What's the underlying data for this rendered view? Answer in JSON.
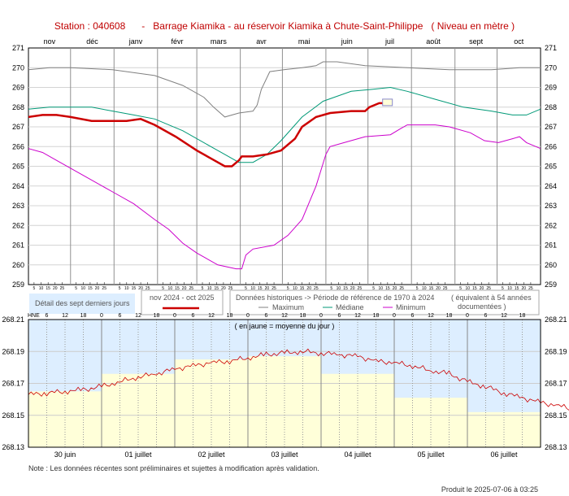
{
  "title": "Station : 040608      -   Barrage Kiamika - au réservoir Kiamika à Chute-Saint-Philippe   ( Niveau en mètre )",
  "legend": {
    "detail_box": "Détail des sept derniers jours",
    "period": "nov 2024 - oct 2025",
    "historic": "Données historiques -> Période de référence  de 1970 à 2024",
    "years": "( équivalent à 54 années",
    "years2": "documentées )",
    "max": "Maximum",
    "median": "Médiane",
    "min": "Minimum"
  },
  "note": "Note : Les données récentes sont préliminaires et sujettes à modification après validation.",
  "produced": "Produit le 2025-07-06 à 03:25",
  "colors": {
    "current": "#cc0000",
    "max": "#808080",
    "median": "#009977",
    "min": "#cc00cc",
    "detail_bg": "#ddeeff",
    "detail_fill": "#ffffd9"
  },
  "chart_data": [
    {
      "type": "line",
      "months": [
        "nov",
        "déc",
        "janv",
        "févr",
        "mars",
        "avr",
        "mai",
        "juin",
        "juil",
        "août",
        "sept",
        "oct"
      ],
      "day_ticks": [
        "5",
        "10",
        "15",
        "20",
        "25"
      ],
      "ylim": [
        259,
        271
      ],
      "yticks": [
        259,
        260,
        261,
        262,
        263,
        264,
        265,
        266,
        267,
        268,
        269,
        270,
        271
      ],
      "grid": true,
      "series": [
        {
          "name": "Maximum",
          "points": [
            [
              0,
              269.9
            ],
            [
              15,
              270.0
            ],
            [
              30,
              270.0
            ],
            [
              60,
              269.9
            ],
            [
              90,
              269.6
            ],
            [
              110,
              269.1
            ],
            [
              125,
              268.5
            ],
            [
              132,
              268.0
            ],
            [
              140,
              267.5
            ],
            [
              150,
              267.7
            ],
            [
              160,
              267.8
            ],
            [
              163,
              268.1
            ],
            [
              166,
              268.9
            ],
            [
              172,
              269.8
            ],
            [
              182,
              269.9
            ],
            [
              195,
              270.0
            ],
            [
              205,
              270.1
            ],
            [
              210,
              270.3
            ],
            [
              220,
              270.3
            ],
            [
              240,
              270.1
            ],
            [
              270,
              270.0
            ],
            [
              300,
              269.9
            ],
            [
              330,
              269.9
            ],
            [
              350,
              270.0
            ],
            [
              365,
              270.0
            ]
          ]
        },
        {
          "name": "Médiane",
          "points": [
            [
              0,
              267.9
            ],
            [
              15,
              268.0
            ],
            [
              30,
              268.0
            ],
            [
              45,
              268.0
            ],
            [
              60,
              267.8
            ],
            [
              75,
              267.6
            ],
            [
              90,
              267.4
            ],
            [
              110,
              266.8
            ],
            [
              130,
              266.0
            ],
            [
              140,
              265.6
            ],
            [
              150,
              265.2
            ],
            [
              160,
              265.2
            ],
            [
              170,
              265.6
            ],
            [
              180,
              266.3
            ],
            [
              195,
              267.5
            ],
            [
              210,
              268.3
            ],
            [
              230,
              268.8
            ],
            [
              245,
              268.9
            ],
            [
              258,
              269.0
            ],
            [
              270,
              268.8
            ],
            [
              290,
              268.4
            ],
            [
              310,
              268.0
            ],
            [
              330,
              267.8
            ],
            [
              345,
              267.6
            ],
            [
              355,
              267.6
            ],
            [
              365,
              267.9
            ]
          ]
        },
        {
          "name": "Minimum",
          "points": [
            [
              0,
              265.9
            ],
            [
              10,
              265.7
            ],
            [
              20,
              265.3
            ],
            [
              40,
              264.5
            ],
            [
              60,
              263.7
            ],
            [
              75,
              263.1
            ],
            [
              90,
              262.3
            ],
            [
              100,
              261.8
            ],
            [
              110,
              261.1
            ],
            [
              120,
              260.6
            ],
            [
              135,
              260.0
            ],
            [
              148,
              259.8
            ],
            [
              152,
              259.8
            ],
            [
              155,
              260.5
            ],
            [
              160,
              260.8
            ],
            [
              175,
              261.0
            ],
            [
              185,
              261.5
            ],
            [
              195,
              262.3
            ],
            [
              205,
              264.0
            ],
            [
              212,
              265.6
            ],
            [
              215,
              266.0
            ],
            [
              225,
              266.2
            ],
            [
              240,
              266.5
            ],
            [
              258,
              266.6
            ],
            [
              265,
              266.9
            ],
            [
              270,
              267.1
            ],
            [
              290,
              267.1
            ],
            [
              300,
              267.0
            ],
            [
              315,
              266.7
            ],
            [
              325,
              266.3
            ],
            [
              335,
              266.2
            ],
            [
              345,
              266.4
            ],
            [
              350,
              266.5
            ],
            [
              355,
              266.2
            ],
            [
              365,
              265.9
            ]
          ]
        },
        {
          "name": "nov 2024 - oct 2025",
          "points": [
            [
              0,
              267.5
            ],
            [
              10,
              267.6
            ],
            [
              20,
              267.6
            ],
            [
              30,
              267.5
            ],
            [
              45,
              267.3
            ],
            [
              60,
              267.3
            ],
            [
              70,
              267.3
            ],
            [
              80,
              267.4
            ],
            [
              90,
              267.1
            ],
            [
              105,
              266.5
            ],
            [
              120,
              265.8
            ],
            [
              130,
              265.4
            ],
            [
              140,
              265.0
            ],
            [
              145,
              265.0
            ],
            [
              150,
              265.3
            ],
            [
              152,
              265.5
            ],
            [
              160,
              265.5
            ],
            [
              170,
              265.6
            ],
            [
              180,
              265.8
            ],
            [
              190,
              266.4
            ],
            [
              195,
              267.0
            ],
            [
              205,
              267.5
            ],
            [
              215,
              267.7
            ],
            [
              230,
              267.8
            ],
            [
              240,
              267.8
            ],
            [
              243,
              268.0
            ],
            [
              250,
              268.2
            ],
            [
              253,
              268.2
            ]
          ]
        }
      ]
    },
    {
      "type": "line",
      "name": "Détail des sept derniers jours",
      "annotation": "( en jaune = moyenne du jour )",
      "xlabel": "HNE",
      "hour_ticks": [
        "6",
        "12",
        "18",
        "0",
        "6",
        "12",
        "18",
        "0",
        "6",
        "12",
        "18",
        "0",
        "6",
        "12",
        "18",
        "0",
        "6",
        "12",
        "18",
        "0",
        "6",
        "12",
        "18",
        "0",
        "6",
        "12",
        "18"
      ],
      "days": [
        "30 juin",
        "01 juillet",
        "02 juillet",
        "03 juillet",
        "04 juillet",
        "05 juillet",
        "06 juillet"
      ],
      "ylim": [
        268.13,
        268.21
      ],
      "yticks": [
        268.13,
        268.15,
        268.17,
        268.19,
        268.21
      ],
      "daily_means": [
        268.165,
        268.176,
        268.185,
        268.187,
        268.176,
        268.161,
        268.152
      ],
      "series": [
        {
          "name": "Niveau",
          "points": [
            [
              0,
              268.163
            ],
            [
              6,
              268.164
            ],
            [
              12,
              268.165
            ],
            [
              18,
              268.166
            ],
            [
              24,
              268.168
            ],
            [
              30,
              268.171
            ],
            [
              36,
              268.174
            ],
            [
              42,
              268.176
            ],
            [
              48,
              268.179
            ],
            [
              54,
              268.181
            ],
            [
              60,
              268.183
            ],
            [
              66,
              268.184
            ],
            [
              72,
              268.186
            ],
            [
              78,
              268.188
            ],
            [
              84,
              268.189
            ],
            [
              90,
              268.19
            ],
            [
              96,
              268.189
            ],
            [
              102,
              268.188
            ],
            [
              108,
              268.187
            ],
            [
              114,
              268.184
            ],
            [
              120,
              268.183
            ],
            [
              126,
              268.181
            ],
            [
              132,
              268.178
            ],
            [
              138,
              268.176
            ],
            [
              144,
              268.171
            ],
            [
              150,
              268.168
            ],
            [
              156,
              268.164
            ],
            [
              162,
              268.161
            ],
            [
              168,
              268.158
            ],
            [
              174,
              268.156
            ],
            [
              180,
              268.153
            ],
            [
              186,
              268.152
            ],
            [
              191,
              268.151
            ]
          ]
        }
      ]
    }
  ]
}
